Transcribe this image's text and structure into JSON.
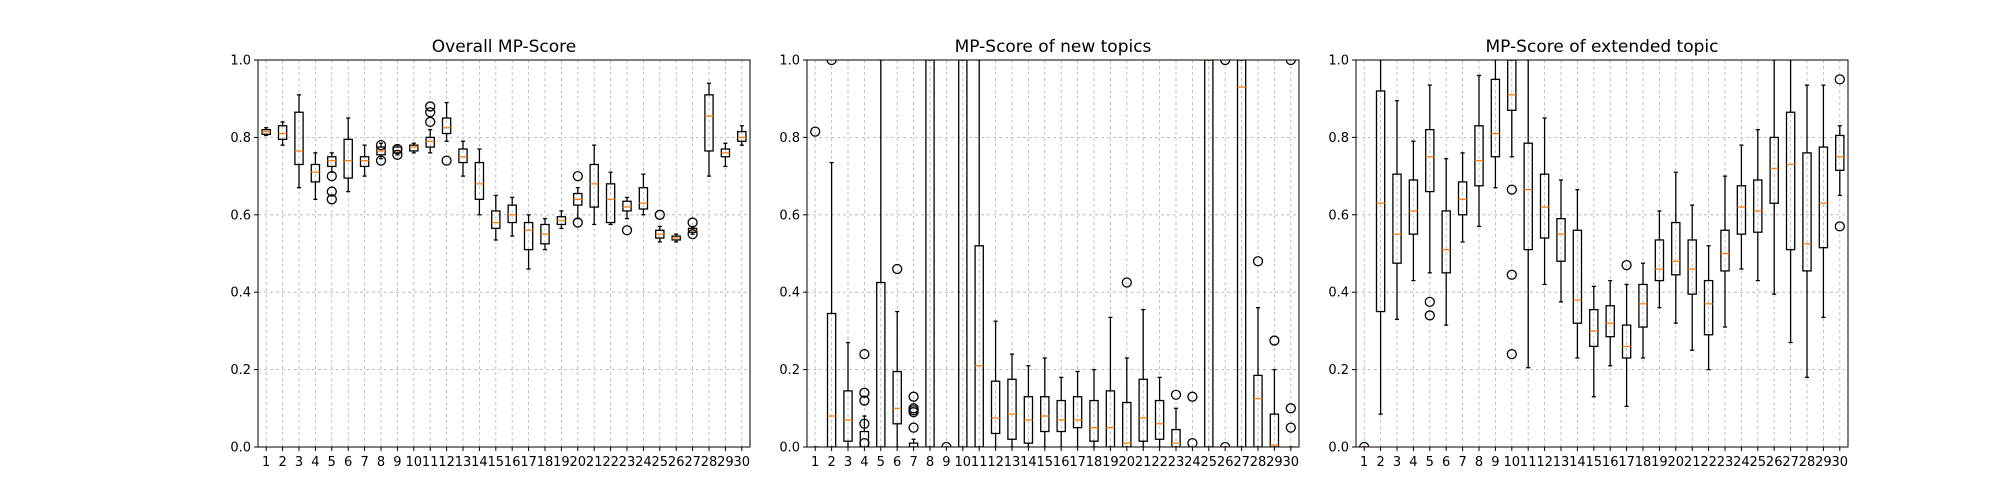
{
  "chart_data": [
    {
      "type": "box",
      "title": "Overall MP-Score",
      "ylim": [
        0,
        1
      ],
      "yticks": [
        "0.0",
        "0.2",
        "0.4",
        "0.6",
        "0.8",
        "1.0"
      ],
      "categories": [
        "1",
        "2",
        "3",
        "4",
        "5",
        "6",
        "7",
        "8",
        "9",
        "10",
        "11",
        "12",
        "13",
        "14",
        "15",
        "16",
        "17",
        "18",
        "19",
        "20",
        "21",
        "22",
        "23",
        "24",
        "25",
        "26",
        "27",
        "28",
        "29",
        "30"
      ],
      "grid": true,
      "boxes": [
        {
          "q1": 0.808,
          "median": 0.815,
          "q3": 0.82,
          "wlo": 0.805,
          "whi": 0.825,
          "fliers": []
        },
        {
          "q1": 0.795,
          "median": 0.81,
          "q3": 0.83,
          "wlo": 0.78,
          "whi": 0.84,
          "fliers": []
        },
        {
          "q1": 0.73,
          "median": 0.765,
          "q3": 0.865,
          "wlo": 0.67,
          "whi": 0.91,
          "fliers": []
        },
        {
          "q1": 0.685,
          "median": 0.71,
          "q3": 0.73,
          "wlo": 0.64,
          "whi": 0.76,
          "fliers": []
        },
        {
          "q1": 0.725,
          "median": 0.74,
          "q3": 0.75,
          "wlo": 0.71,
          "whi": 0.76,
          "fliers": [
            0.7,
            0.66,
            0.64
          ]
        },
        {
          "q1": 0.695,
          "median": 0.74,
          "q3": 0.795,
          "wlo": 0.66,
          "whi": 0.85,
          "fliers": []
        },
        {
          "q1": 0.725,
          "median": 0.74,
          "q3": 0.75,
          "wlo": 0.7,
          "whi": 0.78,
          "fliers": []
        },
        {
          "q1": 0.755,
          "median": 0.765,
          "q3": 0.775,
          "wlo": 0.745,
          "whi": 0.785,
          "fliers": [
            0.78,
            0.74
          ]
        },
        {
          "q1": 0.76,
          "median": 0.765,
          "q3": 0.775,
          "wlo": 0.755,
          "whi": 0.78,
          "fliers": [
            0.77,
            0.755
          ]
        },
        {
          "q1": 0.765,
          "median": 0.775,
          "q3": 0.78,
          "wlo": 0.76,
          "whi": 0.785,
          "fliers": []
        },
        {
          "q1": 0.775,
          "median": 0.79,
          "q3": 0.8,
          "wlo": 0.76,
          "whi": 0.82,
          "fliers": [
            0.88,
            0.865,
            0.84
          ]
        },
        {
          "q1": 0.81,
          "median": 0.825,
          "q3": 0.85,
          "wlo": 0.79,
          "whi": 0.89,
          "fliers": [
            0.74
          ]
        },
        {
          "q1": 0.735,
          "median": 0.75,
          "q3": 0.77,
          "wlo": 0.7,
          "whi": 0.79,
          "fliers": []
        },
        {
          "q1": 0.64,
          "median": 0.68,
          "q3": 0.735,
          "wlo": 0.6,
          "whi": 0.77,
          "fliers": []
        },
        {
          "q1": 0.565,
          "median": 0.58,
          "q3": 0.61,
          "wlo": 0.535,
          "whi": 0.65,
          "fliers": []
        },
        {
          "q1": 0.58,
          "median": 0.6,
          "q3": 0.625,
          "wlo": 0.545,
          "whi": 0.645,
          "fliers": []
        },
        {
          "q1": 0.51,
          "median": 0.56,
          "q3": 0.58,
          "wlo": 0.46,
          "whi": 0.6,
          "fliers": []
        },
        {
          "q1": 0.525,
          "median": 0.55,
          "q3": 0.575,
          "wlo": 0.51,
          "whi": 0.59,
          "fliers": []
        },
        {
          "q1": 0.575,
          "median": 0.585,
          "q3": 0.595,
          "wlo": 0.565,
          "whi": 0.61,
          "fliers": []
        },
        {
          "q1": 0.625,
          "median": 0.64,
          "q3": 0.655,
          "wlo": 0.59,
          "whi": 0.67,
          "fliers": [
            0.7,
            0.58
          ]
        },
        {
          "q1": 0.62,
          "median": 0.68,
          "q3": 0.73,
          "wlo": 0.575,
          "whi": 0.78,
          "fliers": []
        },
        {
          "q1": 0.58,
          "median": 0.64,
          "q3": 0.68,
          "wlo": 0.575,
          "whi": 0.71,
          "fliers": []
        },
        {
          "q1": 0.61,
          "median": 0.62,
          "q3": 0.635,
          "wlo": 0.59,
          "whi": 0.645,
          "fliers": [
            0.56
          ]
        },
        {
          "q1": 0.615,
          "median": 0.63,
          "q3": 0.67,
          "wlo": 0.6,
          "whi": 0.705,
          "fliers": []
        },
        {
          "q1": 0.54,
          "median": 0.55,
          "q3": 0.56,
          "wlo": 0.53,
          "whi": 0.57,
          "fliers": [
            0.6
          ]
        },
        {
          "q1": 0.535,
          "median": 0.54,
          "q3": 0.545,
          "wlo": 0.53,
          "whi": 0.55,
          "fliers": []
        },
        {
          "q1": 0.555,
          "median": 0.56,
          "q3": 0.565,
          "wlo": 0.55,
          "whi": 0.57,
          "fliers": [
            0.58,
            0.55
          ]
        },
        {
          "q1": 0.765,
          "median": 0.855,
          "q3": 0.91,
          "wlo": 0.7,
          "whi": 0.94,
          "fliers": []
        },
        {
          "q1": 0.75,
          "median": 0.76,
          "q3": 0.77,
          "wlo": 0.725,
          "whi": 0.785,
          "fliers": []
        },
        {
          "q1": 0.79,
          "median": 0.8,
          "q3": 0.815,
          "wlo": 0.78,
          "whi": 0.83,
          "fliers": []
        }
      ]
    },
    {
      "type": "box",
      "title": "MP-Score of new topics",
      "ylim": [
        0,
        1
      ],
      "yticks": [
        "0.0",
        "0.2",
        "0.4",
        "0.6",
        "0.8",
        "1.0"
      ],
      "categories": [
        "1",
        "2",
        "3",
        "4",
        "5",
        "6",
        "7",
        "8",
        "9",
        "10",
        "11",
        "12",
        "13",
        "14",
        "15",
        "16",
        "17",
        "18",
        "19",
        "20",
        "21",
        "22",
        "23",
        "24",
        "25",
        "26",
        "27",
        "28",
        "29",
        "30"
      ],
      "grid": true,
      "boxes": [
        {
          "q1": 0.0,
          "median": 0.0,
          "q3": 0.0,
          "wlo": 0.0,
          "whi": 0.0,
          "fliers": [
            0.815
          ]
        },
        {
          "q1": 0.0,
          "median": 0.08,
          "q3": 0.345,
          "wlo": 0.0,
          "whi": 0.735,
          "fliers": [
            1.0
          ]
        },
        {
          "q1": 0.015,
          "median": 0.07,
          "q3": 0.145,
          "wlo": 0.0,
          "whi": 0.27,
          "fliers": []
        },
        {
          "q1": 0.0,
          "median": 0.0,
          "q3": 0.04,
          "wlo": 0.0,
          "whi": 0.08,
          "fliers": [
            0.24,
            0.14,
            0.12,
            0.06,
            0.01
          ]
        },
        {
          "q1": 0.0,
          "median": 0.0,
          "q3": 0.425,
          "wlo": 0.0,
          "whi": 1.0,
          "fliers": []
        },
        {
          "q1": 0.06,
          "median": 0.1,
          "q3": 0.195,
          "wlo": 0.0,
          "whi": 0.35,
          "fliers": [
            0.46
          ]
        },
        {
          "q1": 0.0,
          "median": 0.0,
          "q3": 0.01,
          "wlo": 0.0,
          "whi": 0.02,
          "fliers": [
            0.13,
            0.1,
            0.095,
            0.09,
            0.05
          ]
        },
        {
          "q1": 0.0,
          "median": 1.0,
          "q3": 1.0,
          "wlo": 0.0,
          "whi": 1.0,
          "fliers": []
        },
        {
          "q1": 0.0,
          "median": 0.0,
          "q3": 0.0,
          "wlo": 0.0,
          "whi": 0.0,
          "fliers": [
            0.0
          ]
        },
        {
          "q1": 0.0,
          "median": 1.0,
          "q3": 1.0,
          "wlo": 0.0,
          "whi": 1.0,
          "fliers": []
        },
        {
          "q1": 0.0,
          "median": 0.21,
          "q3": 0.52,
          "wlo": 0.0,
          "whi": 1.0,
          "fliers": []
        },
        {
          "q1": 0.035,
          "median": 0.075,
          "q3": 0.17,
          "wlo": 0.0,
          "whi": 0.325,
          "fliers": []
        },
        {
          "q1": 0.02,
          "median": 0.085,
          "q3": 0.175,
          "wlo": 0.0,
          "whi": 0.24,
          "fliers": []
        },
        {
          "q1": 0.01,
          "median": 0.07,
          "q3": 0.13,
          "wlo": 0.0,
          "whi": 0.21,
          "fliers": []
        },
        {
          "q1": 0.04,
          "median": 0.08,
          "q3": 0.13,
          "wlo": 0.0,
          "whi": 0.23,
          "fliers": []
        },
        {
          "q1": 0.04,
          "median": 0.07,
          "q3": 0.12,
          "wlo": 0.0,
          "whi": 0.18,
          "fliers": []
        },
        {
          "q1": 0.05,
          "median": 0.07,
          "q3": 0.13,
          "wlo": 0.0,
          "whi": 0.195,
          "fliers": []
        },
        {
          "q1": 0.015,
          "median": 0.05,
          "q3": 0.12,
          "wlo": 0.0,
          "whi": 0.2,
          "fliers": []
        },
        {
          "q1": 0.0,
          "median": 0.05,
          "q3": 0.145,
          "wlo": 0.0,
          "whi": 0.335,
          "fliers": []
        },
        {
          "q1": 0.0,
          "median": 0.01,
          "q3": 0.115,
          "wlo": 0.0,
          "whi": 0.23,
          "fliers": [
            0.425
          ]
        },
        {
          "q1": 0.015,
          "median": 0.075,
          "q3": 0.175,
          "wlo": 0.0,
          "whi": 0.355,
          "fliers": []
        },
        {
          "q1": 0.02,
          "median": 0.06,
          "q3": 0.12,
          "wlo": 0.0,
          "whi": 0.18,
          "fliers": []
        },
        {
          "q1": 0.0,
          "median": 0.01,
          "q3": 0.045,
          "wlo": 0.0,
          "whi": 0.1,
          "fliers": [
            0.135
          ]
        },
        {
          "q1": 0.0,
          "median": 0.0,
          "q3": 0.0,
          "wlo": 0.0,
          "whi": 0.0,
          "fliers": [
            0.13,
            0.01
          ]
        },
        {
          "q1": 0.0,
          "median": 1.0,
          "q3": 1.0,
          "wlo": 0.0,
          "whi": 1.0,
          "fliers": []
        },
        {
          "q1": 0.0,
          "median": 0.0,
          "q3": 0.0,
          "wlo": 0.0,
          "whi": 0.0,
          "fliers": [
            1.0,
            0.0
          ]
        },
        {
          "q1": 0.0,
          "median": 0.93,
          "q3": 1.0,
          "wlo": 0.0,
          "whi": 1.0,
          "fliers": []
        },
        {
          "q1": 0.0,
          "median": 0.125,
          "q3": 0.185,
          "wlo": 0.0,
          "whi": 0.36,
          "fliers": [
            0.48
          ]
        },
        {
          "q1": 0.0,
          "median": 0.005,
          "q3": 0.085,
          "wlo": 0.0,
          "whi": 0.2,
          "fliers": [
            0.275
          ]
        },
        {
          "q1": 0.0,
          "median": 0.0,
          "q3": 0.0,
          "wlo": 0.0,
          "whi": 0.0,
          "fliers": [
            1.0,
            0.1,
            0.05
          ]
        }
      ]
    },
    {
      "type": "box",
      "title": "MP-Score of extended topic",
      "ylim": [
        0,
        1
      ],
      "yticks": [
        "0.0",
        "0.2",
        "0.4",
        "0.6",
        "0.8",
        "1.0"
      ],
      "categories": [
        "1",
        "2",
        "3",
        "4",
        "5",
        "6",
        "7",
        "8",
        "9",
        "10",
        "11",
        "12",
        "13",
        "14",
        "15",
        "16",
        "17",
        "18",
        "19",
        "20",
        "21",
        "22",
        "23",
        "24",
        "25",
        "26",
        "27",
        "28",
        "29",
        "30"
      ],
      "grid": true,
      "boxes": [
        {
          "q1": 0.0,
          "median": 0.0,
          "q3": 0.0,
          "wlo": 0.0,
          "whi": 0.0,
          "fliers": [
            0.0
          ]
        },
        {
          "q1": 0.35,
          "median": 0.63,
          "q3": 0.92,
          "wlo": 0.085,
          "whi": 1.0,
          "fliers": []
        },
        {
          "q1": 0.475,
          "median": 0.55,
          "q3": 0.705,
          "wlo": 0.33,
          "whi": 0.895,
          "fliers": []
        },
        {
          "q1": 0.55,
          "median": 0.61,
          "q3": 0.69,
          "wlo": 0.43,
          "whi": 0.79,
          "fliers": []
        },
        {
          "q1": 0.66,
          "median": 0.75,
          "q3": 0.82,
          "wlo": 0.45,
          "whi": 0.935,
          "fliers": [
            0.375,
            0.34
          ]
        },
        {
          "q1": 0.45,
          "median": 0.51,
          "q3": 0.61,
          "wlo": 0.315,
          "whi": 0.745,
          "fliers": []
        },
        {
          "q1": 0.6,
          "median": 0.64,
          "q3": 0.685,
          "wlo": 0.53,
          "whi": 0.76,
          "fliers": []
        },
        {
          "q1": 0.675,
          "median": 0.74,
          "q3": 0.83,
          "wlo": 0.57,
          "whi": 0.96,
          "fliers": []
        },
        {
          "q1": 0.75,
          "median": 0.81,
          "q3": 0.95,
          "wlo": 0.67,
          "whi": 1.0,
          "fliers": []
        },
        {
          "q1": 0.87,
          "median": 0.91,
          "q3": 1.0,
          "wlo": 0.75,
          "whi": 1.0,
          "fliers": [
            0.665,
            0.445,
            0.24
          ]
        },
        {
          "q1": 0.51,
          "median": 0.665,
          "q3": 0.785,
          "wlo": 0.205,
          "whi": 1.0,
          "fliers": []
        },
        {
          "q1": 0.54,
          "median": 0.62,
          "q3": 0.705,
          "wlo": 0.42,
          "whi": 0.85,
          "fliers": []
        },
        {
          "q1": 0.48,
          "median": 0.55,
          "q3": 0.59,
          "wlo": 0.375,
          "whi": 0.69,
          "fliers": []
        },
        {
          "q1": 0.32,
          "median": 0.38,
          "q3": 0.56,
          "wlo": 0.23,
          "whi": 0.665,
          "fliers": []
        },
        {
          "q1": 0.26,
          "median": 0.3,
          "q3": 0.355,
          "wlo": 0.13,
          "whi": 0.415,
          "fliers": []
        },
        {
          "q1": 0.285,
          "median": 0.32,
          "q3": 0.365,
          "wlo": 0.21,
          "whi": 0.43,
          "fliers": []
        },
        {
          "q1": 0.23,
          "median": 0.26,
          "q3": 0.315,
          "wlo": 0.105,
          "whi": 0.42,
          "fliers": [
            0.47
          ]
        },
        {
          "q1": 0.31,
          "median": 0.37,
          "q3": 0.42,
          "wlo": 0.23,
          "whi": 0.475,
          "fliers": []
        },
        {
          "q1": 0.43,
          "median": 0.46,
          "q3": 0.535,
          "wlo": 0.36,
          "whi": 0.61,
          "fliers": []
        },
        {
          "q1": 0.445,
          "median": 0.48,
          "q3": 0.58,
          "wlo": 0.32,
          "whi": 0.71,
          "fliers": []
        },
        {
          "q1": 0.395,
          "median": 0.46,
          "q3": 0.535,
          "wlo": 0.25,
          "whi": 0.625,
          "fliers": []
        },
        {
          "q1": 0.29,
          "median": 0.37,
          "q3": 0.43,
          "wlo": 0.2,
          "whi": 0.52,
          "fliers": []
        },
        {
          "q1": 0.455,
          "median": 0.5,
          "q3": 0.56,
          "wlo": 0.31,
          "whi": 0.7,
          "fliers": []
        },
        {
          "q1": 0.55,
          "median": 0.62,
          "q3": 0.675,
          "wlo": 0.46,
          "whi": 0.78,
          "fliers": []
        },
        {
          "q1": 0.555,
          "median": 0.61,
          "q3": 0.69,
          "wlo": 0.43,
          "whi": 0.82,
          "fliers": []
        },
        {
          "q1": 0.63,
          "median": 0.72,
          "q3": 0.8,
          "wlo": 0.395,
          "whi": 1.0,
          "fliers": []
        },
        {
          "q1": 0.51,
          "median": 0.73,
          "q3": 0.865,
          "wlo": 0.27,
          "whi": 1.0,
          "fliers": []
        },
        {
          "q1": 0.455,
          "median": 0.525,
          "q3": 0.76,
          "wlo": 0.18,
          "whi": 0.935,
          "fliers": []
        },
        {
          "q1": 0.515,
          "median": 0.63,
          "q3": 0.775,
          "wlo": 0.335,
          "whi": 0.935,
          "fliers": []
        },
        {
          "q1": 0.715,
          "median": 0.75,
          "q3": 0.805,
          "wlo": 0.65,
          "whi": 0.83,
          "fliers": [
            0.95,
            0.57
          ]
        }
      ]
    }
  ]
}
